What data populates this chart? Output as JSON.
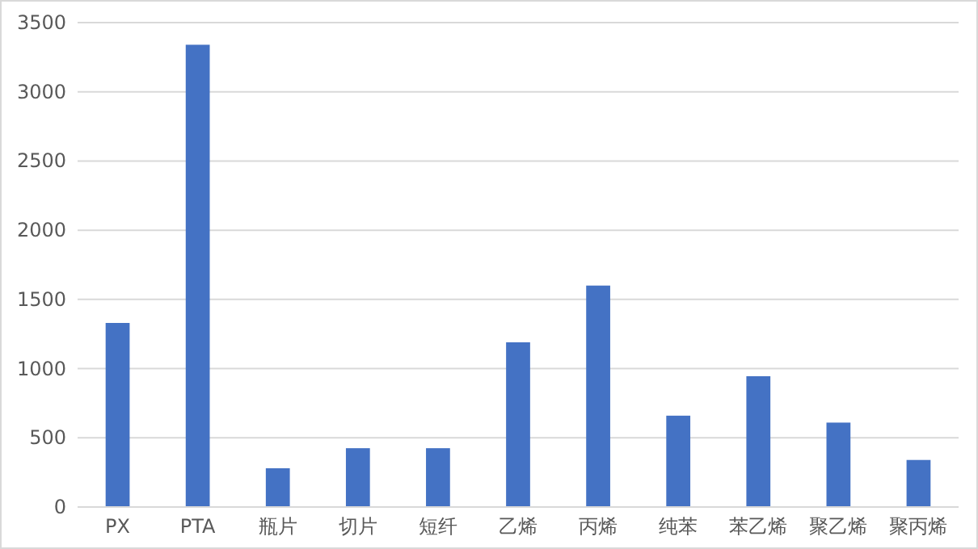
{
  "chart_data": {
    "type": "bar",
    "categories": [
      "PX",
      "PTA",
      "瓶片",
      "切片",
      "短纤",
      "乙烯",
      "丙烯",
      "纯苯",
      "苯乙烯",
      "聚乙烯",
      "聚丙烯"
    ],
    "values": [
      1330,
      3340,
      280,
      425,
      425,
      1190,
      1600,
      660,
      945,
      610,
      340
    ],
    "color": "#4472c4",
    "ylim": [
      0,
      3500
    ],
    "yticks": [
      0,
      500,
      1000,
      1500,
      2000,
      2500,
      3000,
      3500
    ],
    "grid": "y"
  }
}
